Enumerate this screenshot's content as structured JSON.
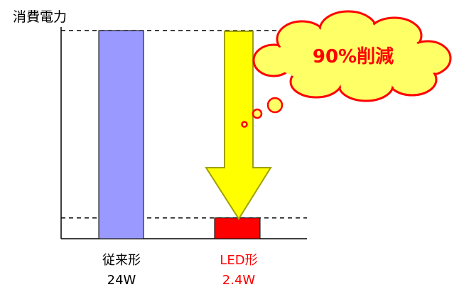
{
  "chart_data": {
    "type": "bar",
    "ylabel": "消費電力",
    "categories": [
      "従来形",
      "LED形"
    ],
    "values": [
      24,
      2.4
    ],
    "value_labels": [
      "24W",
      "2.4W"
    ],
    "ylim": [
      0,
      24
    ],
    "grid": false,
    "reference_lines": [
      24,
      2.4
    ],
    "annotation": "90%削減",
    "colors": {
      "bar_conventional": "#9999ff",
      "bar_led": "#ff0000",
      "led_text": "#ff0000",
      "arrow_fill": "#ffff00",
      "arrow_stroke": "#a0a000",
      "cloud_fill": "#ffff66",
      "cloud_stroke": "#ff0000",
      "annotation_text": "#ff0000"
    }
  }
}
